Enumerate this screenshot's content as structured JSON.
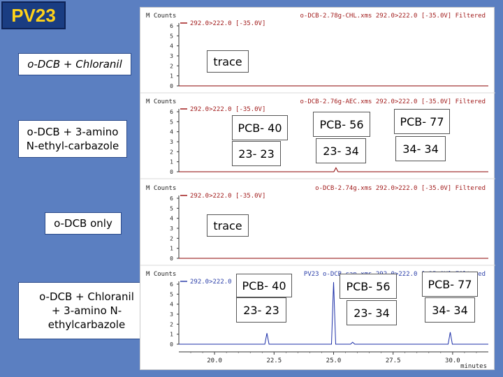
{
  "slide": {
    "title": "PV23"
  },
  "labels": {
    "row1": "o-DCB + Chloranil",
    "row2_line1": "o-DCB + 3-amino",
    "row2_line2": "N-ethyl-carbazole",
    "row3": "o-DCB only",
    "row4_line1": "o-DCB + Chloranil",
    "row4_line2": "+ 3-amino N-",
    "row4_line3": "ethylcarbazole"
  },
  "annotations": {
    "trace1": "trace",
    "trace2": "trace",
    "p2_pcb40": "PCB- 40",
    "p2_pcb56": "PCB- 56",
    "p2_pcb77": "PCB- 77",
    "p2_2323": "23- 23",
    "p2_2334": "23- 34",
    "p2_3434": "34- 34",
    "p4_pcb40": "PCB- 40",
    "p4_pcb56": "PCB- 56",
    "p4_pcb77": "PCB- 77",
    "p4_2323": "23- 23",
    "p4_2334": "23- 34",
    "p4_3434": "34- 34"
  },
  "colors": {
    "background": "#5b7fc1",
    "title_box": "#1a3d82",
    "title_text": "#ffd21a",
    "trace_red": "#8b0000",
    "trace_blue": "#1c2fa8",
    "header_red": "#a11b1b",
    "header_blue": "#2a3ea8"
  },
  "chart_data": {
    "type": "line",
    "x_unit": "minutes",
    "xlim": [
      18.5,
      31.5
    ],
    "x_ticks": [
      "20.0",
      "22.5",
      "25.0",
      "27.5",
      "30.0"
    ],
    "y_unit": "M Counts",
    "ylim": [
      0,
      6
    ],
    "y_ticks": [
      "0",
      "1",
      "2",
      "3",
      "4",
      "5",
      "6"
    ],
    "panels": [
      {
        "header_left": "M Counts",
        "header_right": "o-DCB-2.78g-CHL.xms 292.0>222.0 [-35.0V] Filtered",
        "sub_header": "292.0>222.0 [-35.0V]",
        "peaks": []
      },
      {
        "header_left": "M Counts",
        "header_right": "o-DCB-2.76g-AEC.xms 292.0>222.0 [-35.0V] Filtered",
        "sub_header": "292.0>222.0 [-35.0V]",
        "peaks": [
          {
            "x": 25.1,
            "y": 0.4
          }
        ]
      },
      {
        "header_left": "M Counts",
        "header_right": "o-DCB-2.74g.xms 292.0>222.0 [-35.0V] Filtered",
        "sub_header": "292.0>222.0 [-35.0V]",
        "peaks": []
      },
      {
        "header_left": "M Counts",
        "header_right": "PV23 o-DCB cap.xms 292.0>222.0 [-35.0V] Filtered",
        "sub_header": "292.0>222.0",
        "peaks": [
          {
            "x": 22.2,
            "y": 1.1
          },
          {
            "x": 25.0,
            "y": 6.2
          },
          {
            "x": 25.8,
            "y": 0.2
          },
          {
            "x": 29.9,
            "y": 1.2
          }
        ]
      }
    ]
  }
}
